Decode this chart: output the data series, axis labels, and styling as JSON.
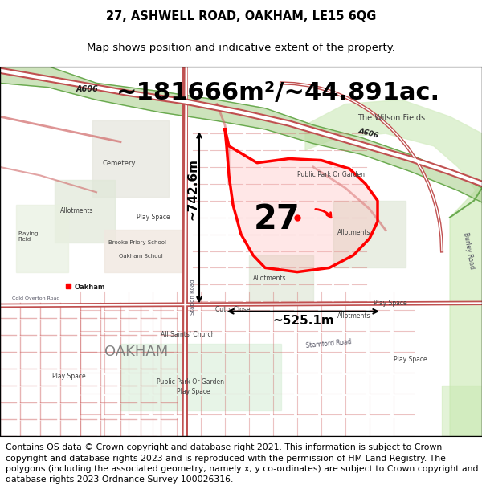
{
  "title_line1": "27, ASHWELL ROAD, OAKHAM, LE15 6QG",
  "title_line2": "Map shows position and indicative extent of the property.",
  "measurement_text": "~181666m²/~44.891ac.",
  "width_label": "~525.1m",
  "height_label": "~742.6m",
  "property_number": "27",
  "footer_text": "Contains OS data © Crown copyright and database right 2021. This information is subject to Crown copyright and database rights 2023 and is reproduced with the permission of HM Land Registry. The polygons (including the associated geometry, namely x, y co-ordinates) are subject to Crown copyright and database rights 2023 Ordnance Survey 100026316.",
  "title_fontsize": 10.5,
  "subtitle_fontsize": 9.5,
  "measurement_fontsize": 22,
  "label_fontsize": 11,
  "number_fontsize": 30,
  "footer_fontsize": 7.8,
  "map_bg_color": "#ffffff",
  "title_area_color": "#ffffff",
  "fig_width": 6.0,
  "fig_height": 6.25,
  "dpi": 100
}
